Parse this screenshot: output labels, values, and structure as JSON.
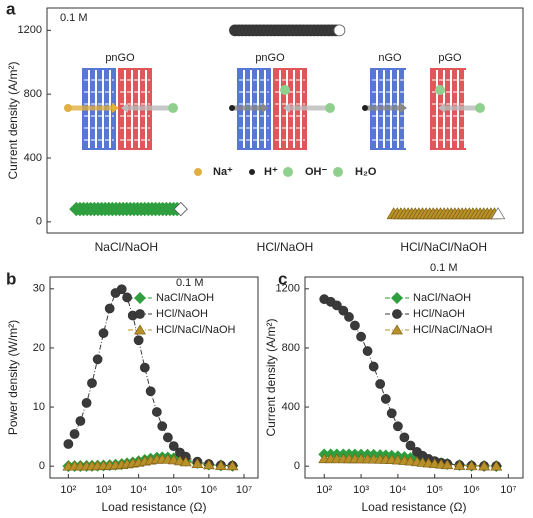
{
  "chart_data": [
    {
      "type": "strip",
      "panel_label": "a",
      "ylabel": "Current density (A/m²)",
      "note": "0.1 M",
      "categories": [
        "NaCl/NaOH",
        "HCl/NaOH",
        "HCl/NaCl/NaOH"
      ],
      "values": [
        80,
        1200,
        50
      ],
      "colors": [
        "#2e9e3e",
        "#3a3a3a",
        "#b8902a"
      ],
      "markers": [
        "diamond",
        "circle",
        "triangle"
      ],
      "ylim": [
        -70,
        1340
      ],
      "yticks": [
        0,
        400,
        800,
        1200
      ],
      "annotations": [
        "pnGO",
        "pnGO",
        "nGO",
        "pGO",
        "Na⁺",
        "H⁺",
        "OH⁻",
        "H₂O"
      ]
    },
    {
      "type": "line",
      "panel_label": "b",
      "xlabel": "Load resistance (Ω)",
      "ylabel": "Power density (W/m²)",
      "note": "0.1 M",
      "xscale": "log",
      "xlim": [
        30,
        25000000
      ],
      "ylim": [
        -2,
        32
      ],
      "yticks": [
        0,
        10,
        20,
        30
      ],
      "xticks": [
        {
          "value": 100,
          "label": "10²"
        },
        {
          "value": 1000,
          "label": "10³"
        },
        {
          "value": 10000,
          "label": "10⁴"
        },
        {
          "value": 100000,
          "label": "10⁵"
        },
        {
          "value": 1000000,
          "label": "10⁶"
        },
        {
          "value": 10000000,
          "label": "10⁷"
        }
      ],
      "x": [
        100,
        150,
        220,
        330,
        470,
        680,
        1000,
        1500,
        2200,
        3300,
        4700,
        6800,
        10000,
        15000,
        22000,
        33000,
        47000,
        68000,
        100000,
        150000,
        220000,
        470000,
        1000000,
        2200000,
        4700000
      ],
      "series": [
        {
          "name": "NaCl/NaOH",
          "color": "#2e9e3e",
          "marker": "diamond",
          "values": [
            0.012,
            0.018,
            0.026,
            0.039,
            0.055,
            0.08,
            0.115,
            0.17,
            0.243,
            0.349,
            0.471,
            0.632,
            0.833,
            1.065,
            1.273,
            1.437,
            1.499,
            1.465,
            1.333,
            1.125,
            0.905,
            0.521,
            0.272,
            0.132,
            0.063
          ]
        },
        {
          "name": "HCl/NaOH",
          "color": "#3a3a3a",
          "marker": "circle",
          "values": [
            3.75,
            5.44,
            7.64,
            10.71,
            14.05,
            18.08,
            22.5,
            26.67,
            29.29,
            29.93,
            28.54,
            25.49,
            21.3,
            16.67,
            12.67,
            9.17,
            6.77,
            4.86,
            3.39,
            2.31,
            1.61,
            0.76,
            0.36,
            0.16,
            0.08
          ]
        },
        {
          "name": "HCl/NaCl/NaOH",
          "color": "#b8902a",
          "marker": "triangle",
          "values": [
            0.01,
            0.014,
            0.021,
            0.031,
            0.044,
            0.064,
            0.092,
            0.136,
            0.194,
            0.279,
            0.377,
            0.506,
            0.666,
            0.852,
            1.018,
            1.15,
            1.199,
            1.172,
            1.066,
            0.9,
            0.724,
            0.417,
            0.218,
            0.106,
            0.05
          ]
        }
      ]
    },
    {
      "type": "line",
      "panel_label": "c",
      "xlabel": "Load resistance (Ω)",
      "ylabel": "Current density (A/m²)",
      "note": "0.1 M",
      "xscale": "log",
      "xlim": [
        30,
        25000000
      ],
      "ylim": [
        -80,
        1280
      ],
      "yticks": [
        0,
        400,
        800,
        1200
      ],
      "xticks": [
        {
          "value": 100,
          "label": "10²"
        },
        {
          "value": 1000,
          "label": "10³"
        },
        {
          "value": 10000,
          "label": "10⁴"
        },
        {
          "value": 100000,
          "label": "10⁵"
        },
        {
          "value": 1000000,
          "label": "10⁶"
        },
        {
          "value": 10000000,
          "label": "10⁷"
        }
      ],
      "x": [
        100,
        150,
        220,
        330,
        470,
        680,
        1000,
        1500,
        2200,
        3300,
        4700,
        6800,
        10000,
        15000,
        22000,
        33000,
        47000,
        68000,
        100000,
        150000,
        220000,
        470000,
        1000000,
        2200000,
        4700000
      ],
      "series": [
        {
          "name": "NaCl/NaOH",
          "color": "#2e9e3e",
          "marker": "diamond",
          "values": [
            79.8,
            79.8,
            79.6,
            79.5,
            79.3,
            78.9,
            78.4,
            77.7,
            76.6,
            75,
            73.1,
            70.4,
            66.7,
            61.5,
            55.6,
            48.2,
            41.2,
            33.9,
            26.7,
            20,
            14.8,
            7.7,
            3.8,
            1.8,
            0.8
          ]
        },
        {
          "name": "HCl/NaOH",
          "color": "#3a3a3a",
          "marker": "circle",
          "values": [
            1130,
            1112,
            1088,
            1052,
            1010,
            952,
            876,
            779,
            674,
            556,
            455,
            358,
            270,
            195,
            140,
            97,
            70,
            49,
            34,
            23,
            16,
            7,
            3.5,
            1.6,
            0.7
          ]
        },
        {
          "name": "HCl/NaCl/NaOH",
          "color": "#b8902a",
          "marker": "triangle",
          "values": [
            49.9,
            49.9,
            49.8,
            49.7,
            49.6,
            49.3,
            49,
            48.6,
            47.9,
            46.9,
            45.7,
            44,
            41.7,
            38.4,
            34.8,
            30.1,
            25.8,
            21.2,
            16.7,
            12.5,
            9.3,
            4.8,
            2.4,
            1.1,
            0.5
          ]
        }
      ]
    }
  ]
}
